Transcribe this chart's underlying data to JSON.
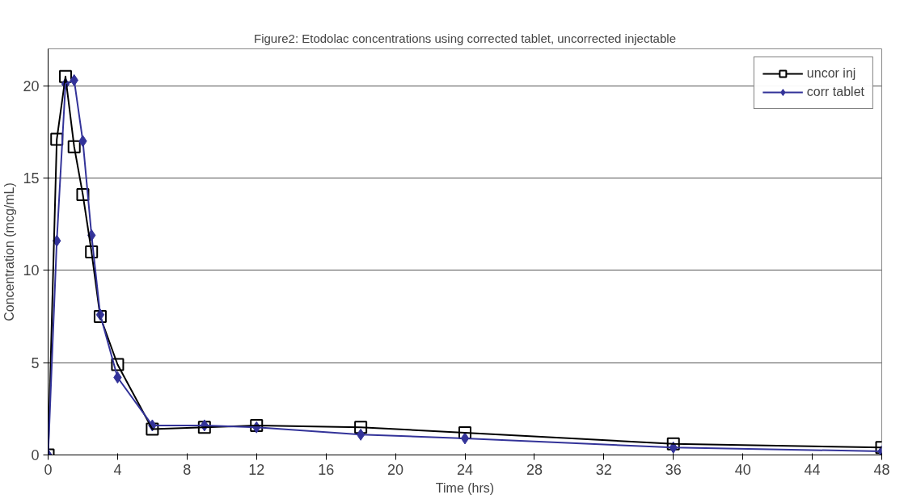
{
  "chart_data": {
    "type": "line",
    "title": "Figure2: Etodolac concentrations using corrected tablet, uncorrected injectable",
    "xlabel": "Time (hrs)",
    "ylabel": "Concentration (mcg/mL)",
    "x": [
      0,
      0.5,
      1,
      1.5,
      2,
      2.5,
      3,
      4,
      6,
      9,
      12,
      18,
      24,
      36,
      48
    ],
    "series": [
      {
        "name": "uncor inj",
        "color": "#000000",
        "marker": "square",
        "values": [
          0,
          17.1,
          20.5,
          16.7,
          14.1,
          11.0,
          7.5,
          4.9,
          1.4,
          1.5,
          1.6,
          1.5,
          1.2,
          0.6,
          0.4
        ]
      },
      {
        "name": "corr tablet",
        "color": "#333399",
        "marker": "diamond",
        "values": [
          0,
          11.6,
          20.1,
          20.3,
          17.0,
          11.9,
          7.6,
          4.2,
          1.6,
          1.6,
          1.5,
          1.1,
          0.9,
          0.4,
          0.2
        ]
      }
    ],
    "xlim": [
      0,
      48
    ],
    "xticks": [
      0,
      4,
      8,
      12,
      16,
      20,
      24,
      28,
      32,
      36,
      40,
      44,
      48
    ],
    "ylim": [
      0,
      22
    ],
    "yticks": [
      0,
      5,
      10,
      15,
      20
    ],
    "grid": "y",
    "legend": "top right",
    "line_style": "solid"
  }
}
